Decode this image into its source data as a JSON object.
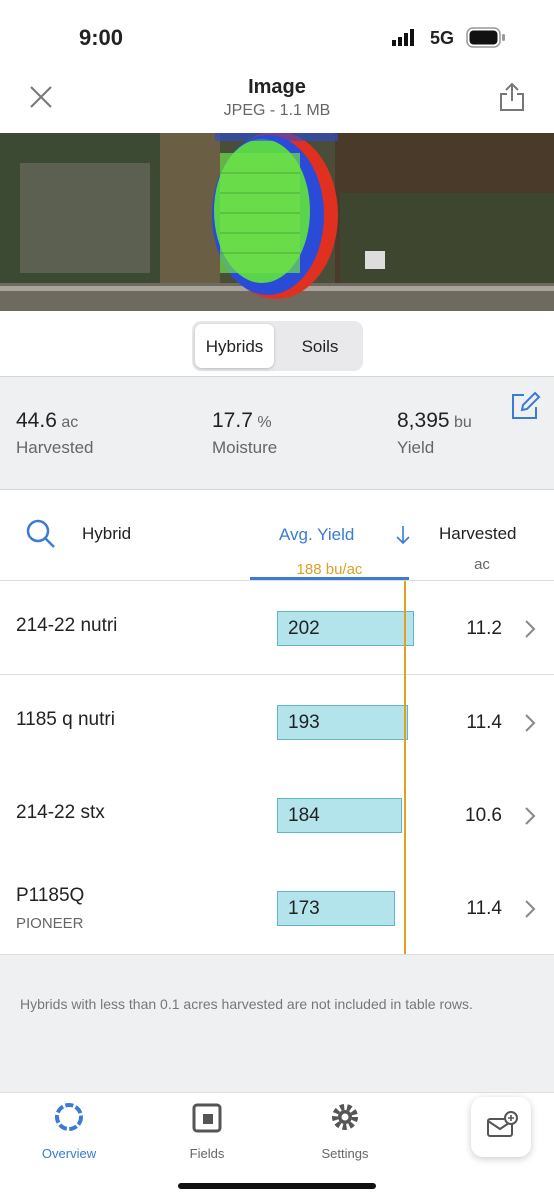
{
  "status_bar": {
    "time": "9:00",
    "network": "5G"
  },
  "header": {
    "title": "Image",
    "subtitle": "JPEG - 1.1 MB"
  },
  "tabs": [
    "Hybrids",
    "Soils"
  ],
  "summary": [
    {
      "value": "44.6",
      "unit": "ac",
      "label": "Harvested"
    },
    {
      "value": "17.7",
      "unit": "%",
      "label": "Moisture"
    },
    {
      "value": "8,395",
      "unit": "bu",
      "label": "Yield"
    }
  ],
  "table": {
    "columns": {
      "hybrid": "Hybrid",
      "avg_yield": "Avg. Yield",
      "harvested": "Harvested",
      "harvested_unit": "ac"
    },
    "average": {
      "value": 188,
      "label": "188 bu/ac"
    },
    "rows": [
      {
        "name": "214-22 nutri",
        "avg_yield": 202,
        "harvested": 11.2
      },
      {
        "name": "1185 q nutri",
        "avg_yield": 193,
        "harvested": 11.4
      },
      {
        "name": "214-22 stx",
        "avg_yield": 184,
        "harvested": 10.6
      },
      {
        "name": "P1185Q",
        "brand": "PIONEER",
        "avg_yield": 173,
        "harvested": 11.4
      }
    ]
  },
  "note": "Hybrids with less than 0.1 acres harvested are not included in table rows.",
  "nav": [
    "Overview",
    "Fields",
    "Settings"
  ]
}
